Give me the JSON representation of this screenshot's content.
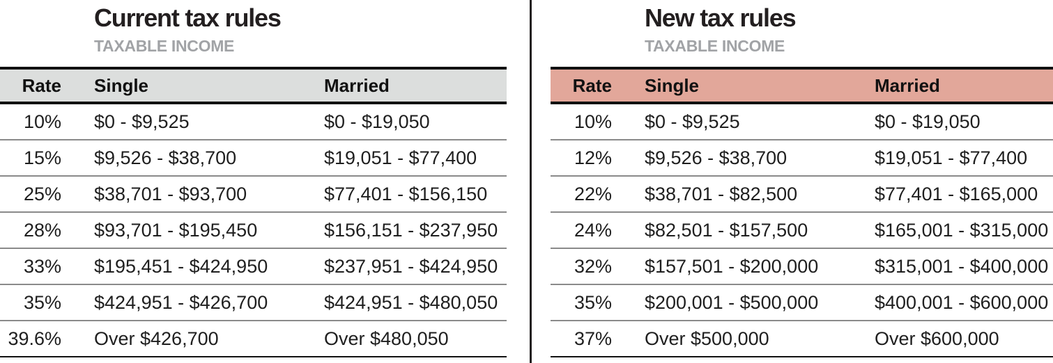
{
  "page": {
    "background": "#ffffff",
    "divider_color": "#231f20",
    "row_rule_color": "#8a8a8a",
    "border_color": "#111111"
  },
  "chart_data": [
    {
      "type": "table",
      "title": "Current tax rules",
      "subtitle": "TAXABLE INCOME",
      "header_bg": "#dcdedd",
      "columns": {
        "rate": "Rate",
        "single": "Single",
        "married": "Married"
      },
      "rows": [
        {
          "rate": "10%",
          "single": "$0 - $9,525",
          "married": "$0 - $19,050"
        },
        {
          "rate": "15%",
          "single": "$9,526 - $38,700",
          "married": "$19,051 - $77,400"
        },
        {
          "rate": "25%",
          "single": "$38,701 - $93,700",
          "married": "$77,401 - $156,150"
        },
        {
          "rate": "28%",
          "single": "$93,701 - $195,450",
          "married": "$156,151 - $237,950"
        },
        {
          "rate": "33%",
          "single": "$195,451 - $424,950",
          "married": "$237,951 - $424,950"
        },
        {
          "rate": "35%",
          "single": "$424,951 - $426,700",
          "married": "$424,951 - $480,050"
        },
        {
          "rate": "39.6%",
          "single": "Over $426,700",
          "married": "Over $480,050"
        }
      ]
    },
    {
      "type": "table",
      "title": "New tax rules",
      "subtitle": "TAXABLE INCOME",
      "header_bg": "#e2a79a",
      "columns": {
        "rate": "Rate",
        "single": "Single",
        "married": "Married"
      },
      "rows": [
        {
          "rate": "10%",
          "single": "$0 - $9,525",
          "married": "$0 - $19,050"
        },
        {
          "rate": "12%",
          "single": "$9,526 - $38,700",
          "married": "$19,051 - $77,400"
        },
        {
          "rate": "22%",
          "single": "$38,701 - $82,500",
          "married": "$77,401 - $165,000"
        },
        {
          "rate": "24%",
          "single": "$82,501 - $157,500",
          "married": "$165,001 - $315,000"
        },
        {
          "rate": "32%",
          "single": "$157,501 - $200,000",
          "married": "$315,001 - $400,000"
        },
        {
          "rate": "35%",
          "single": "$200,001 - $500,000",
          "married": "$400,001 - $600,000"
        },
        {
          "rate": "37%",
          "single": "Over $500,000",
          "married": "Over $600,000"
        }
      ]
    }
  ]
}
